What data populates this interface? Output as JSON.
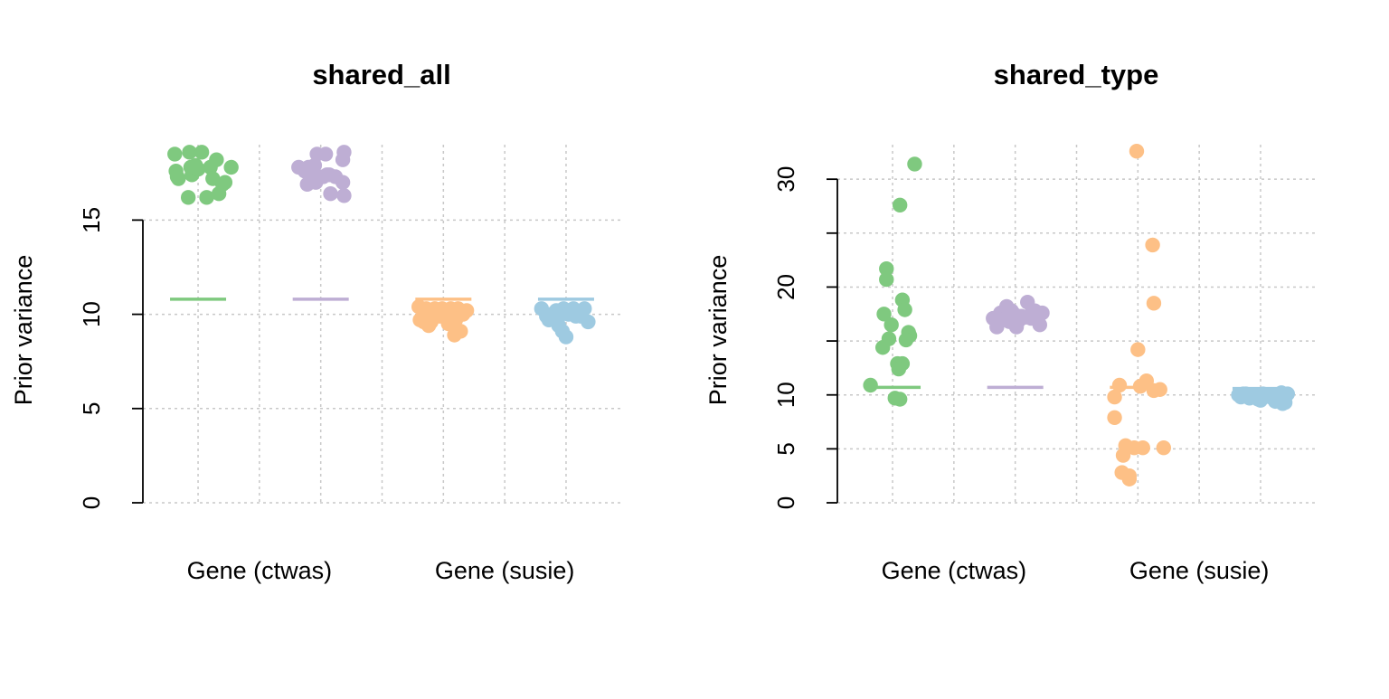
{
  "colors": {
    "ctwas_green": "#7fc97f",
    "purple": "#beaed4",
    "susie_orange": "#fdc086",
    "blue": "#9ecae1"
  },
  "chart_data": [
    {
      "type": "scatter",
      "title": "shared_all",
      "ylabel": "Prior variance",
      "xlabel": "",
      "yticks": [
        "0",
        "5",
        "10",
        "15"
      ],
      "ytick_values": [
        0,
        5,
        10,
        15
      ],
      "ylim": [
        0,
        19
      ],
      "xlim": [
        0.55,
        4.45
      ],
      "grid": true,
      "group_labels": [
        {
          "x": 1.5,
          "text": "Gene (ctwas)"
        },
        {
          "x": 3.5,
          "text": "Gene (susie)"
        }
      ],
      "series": [
        {
          "group": 1,
          "color": "#7fc97f",
          "mean": 10.8,
          "x": [
            0.81,
            0.93,
            1.03,
            1.15,
            1.27,
            0.82,
            0.98,
            1.1,
            1.22,
            0.84,
            0.95,
            1.12,
            1.2,
            0.92,
            1.07,
            1.17,
            0.94,
            1.0,
            0.83
          ],
          "values": [
            18.5,
            18.6,
            18.6,
            18.2,
            17.8,
            17.6,
            17.9,
            17.8,
            17.0,
            17.2,
            17.4,
            17.2,
            16.9,
            16.2,
            16.2,
            16.4,
            17.8,
            17.7,
            17.3
          ]
        },
        {
          "group": 2,
          "color": "#beaed4",
          "mean": 10.8,
          "x": [
            1.82,
            1.9,
            1.97,
            2.04,
            2.19,
            2.18,
            1.87,
            1.94,
            2.02,
            2.07,
            2.12,
            2.18,
            1.89,
            1.96,
            2.08,
            2.19,
            1.95,
            1.9,
            2.05
          ],
          "values": [
            17.8,
            17.8,
            18.5,
            18.5,
            18.6,
            18.2,
            17.6,
            17.4,
            17.3,
            17.4,
            17.3,
            17.0,
            16.9,
            17.0,
            16.4,
            16.3,
            17.9,
            17.6,
            17.4
          ]
        },
        {
          "group": 3,
          "color": "#fdc086",
          "mean": 10.8,
          "x": [
            2.8,
            2.86,
            2.93,
            2.99,
            3.06,
            3.12,
            3.19,
            2.84,
            2.9,
            2.97,
            3.03,
            3.1,
            3.16,
            2.81,
            2.88,
            3.09,
            3.14,
            3.04,
            3.02
          ],
          "values": [
            10.4,
            10.3,
            10.3,
            10.3,
            10.3,
            10.3,
            10.2,
            9.6,
            9.6,
            9.9,
            9.8,
            9.7,
            10.0,
            9.7,
            9.4,
            8.9,
            9.1,
            9.5,
            10.1
          ]
        },
        {
          "group": 4,
          "color": "#9ecae1",
          "mean": 10.8,
          "x": [
            3.8,
            3.88,
            3.92,
            3.98,
            4.06,
            4.15,
            3.84,
            3.9,
            3.95,
            4.02,
            4.1,
            4.18,
            3.86,
            3.97,
            4.12,
            3.94,
            4.08,
            3.93,
            4.0
          ],
          "values": [
            10.3,
            10.0,
            10.2,
            10.3,
            10.3,
            10.3,
            9.9,
            9.8,
            10.2,
            10.0,
            10.0,
            9.6,
            9.7,
            9.1,
            9.9,
            9.4,
            9.9,
            9.7,
            8.8
          ]
        }
      ]
    },
    {
      "type": "scatter",
      "title": "shared_type",
      "ylabel": "Prior variance",
      "xlabel": "",
      "yticks": [
        "0",
        "5",
        "10",
        "20",
        "30"
      ],
      "ytick_values": [
        0,
        5,
        10,
        20,
        30
      ],
      "minor_ticks": [
        15,
        25
      ],
      "ylim": [
        0,
        33.2
      ],
      "xlim": [
        0.55,
        4.45
      ],
      "grid": true,
      "group_labels": [
        {
          "x": 1.5,
          "text": "Gene (ctwas)"
        },
        {
          "x": 3.5,
          "text": "Gene (susie)"
        }
      ],
      "series": [
        {
          "group": 1,
          "color": "#7fc97f",
          "mean": 10.7,
          "x": [
            1.18,
            1.06,
            0.95,
            0.95,
            1.08,
            0.93,
            1.1,
            0.99,
            1.13,
            0.97,
            1.14,
            1.11,
            0.92,
            1.04,
            1.08,
            1.05,
            0.82,
            1.02,
            1.06
          ],
          "values": [
            31.4,
            27.6,
            21.7,
            20.7,
            18.8,
            17.5,
            17.9,
            16.5,
            15.8,
            15.2,
            15.5,
            15.1,
            14.4,
            12.9,
            12.9,
            12.4,
            10.9,
            9.7,
            9.6
          ]
        },
        {
          "group": 2,
          "color": "#beaed4",
          "mean": 10.7,
          "x": [
            1.82,
            1.88,
            1.93,
            1.99,
            2.05,
            2.1,
            2.16,
            2.22,
            1.85,
            1.91,
            1.97,
            2.03,
            2.08,
            2.13,
            2.2,
            1.95,
            2.01,
            2.12,
            1.87
          ],
          "values": [
            17.1,
            17.6,
            18.2,
            17.5,
            17.3,
            18.6,
            17.8,
            17.6,
            16.3,
            17.0,
            17.8,
            16.9,
            17.2,
            17.1,
            16.5,
            16.8,
            16.3,
            17.4,
            17.0
          ]
        },
        {
          "group": 3,
          "color": "#fdc086",
          "mean": 10.7,
          "x": [
            2.99,
            3.12,
            3.13,
            3.0,
            3.07,
            2.85,
            3.02,
            3.13,
            3.18,
            2.81,
            2.81,
            2.9,
            3.04,
            2.88,
            2.97,
            3.21,
            2.87,
            2.93,
            2.93
          ],
          "values": [
            32.6,
            23.9,
            18.5,
            14.2,
            11.3,
            10.9,
            10.8,
            10.4,
            10.5,
            9.8,
            7.9,
            5.3,
            5.1,
            4.4,
            5.1,
            5.1,
            2.8,
            2.5,
            2.2
          ]
        },
        {
          "group": 4,
          "color": "#9ecae1",
          "mean": 10.6,
          "x": [
            3.82,
            3.88,
            3.95,
            4.02,
            4.1,
            4.17,
            4.22,
            3.84,
            3.91,
            3.98,
            4.05,
            4.12,
            4.2,
            3.93,
            4.08,
            4.15,
            3.86,
            4.0,
            4.18
          ],
          "values": [
            10.0,
            10.1,
            9.9,
            10.1,
            10.0,
            10.2,
            10.1,
            9.8,
            9.7,
            9.6,
            9.9,
            9.4,
            9.3,
            10.0,
            9.8,
            9.6,
            10.1,
            9.5,
            9.2
          ]
        }
      ]
    }
  ]
}
